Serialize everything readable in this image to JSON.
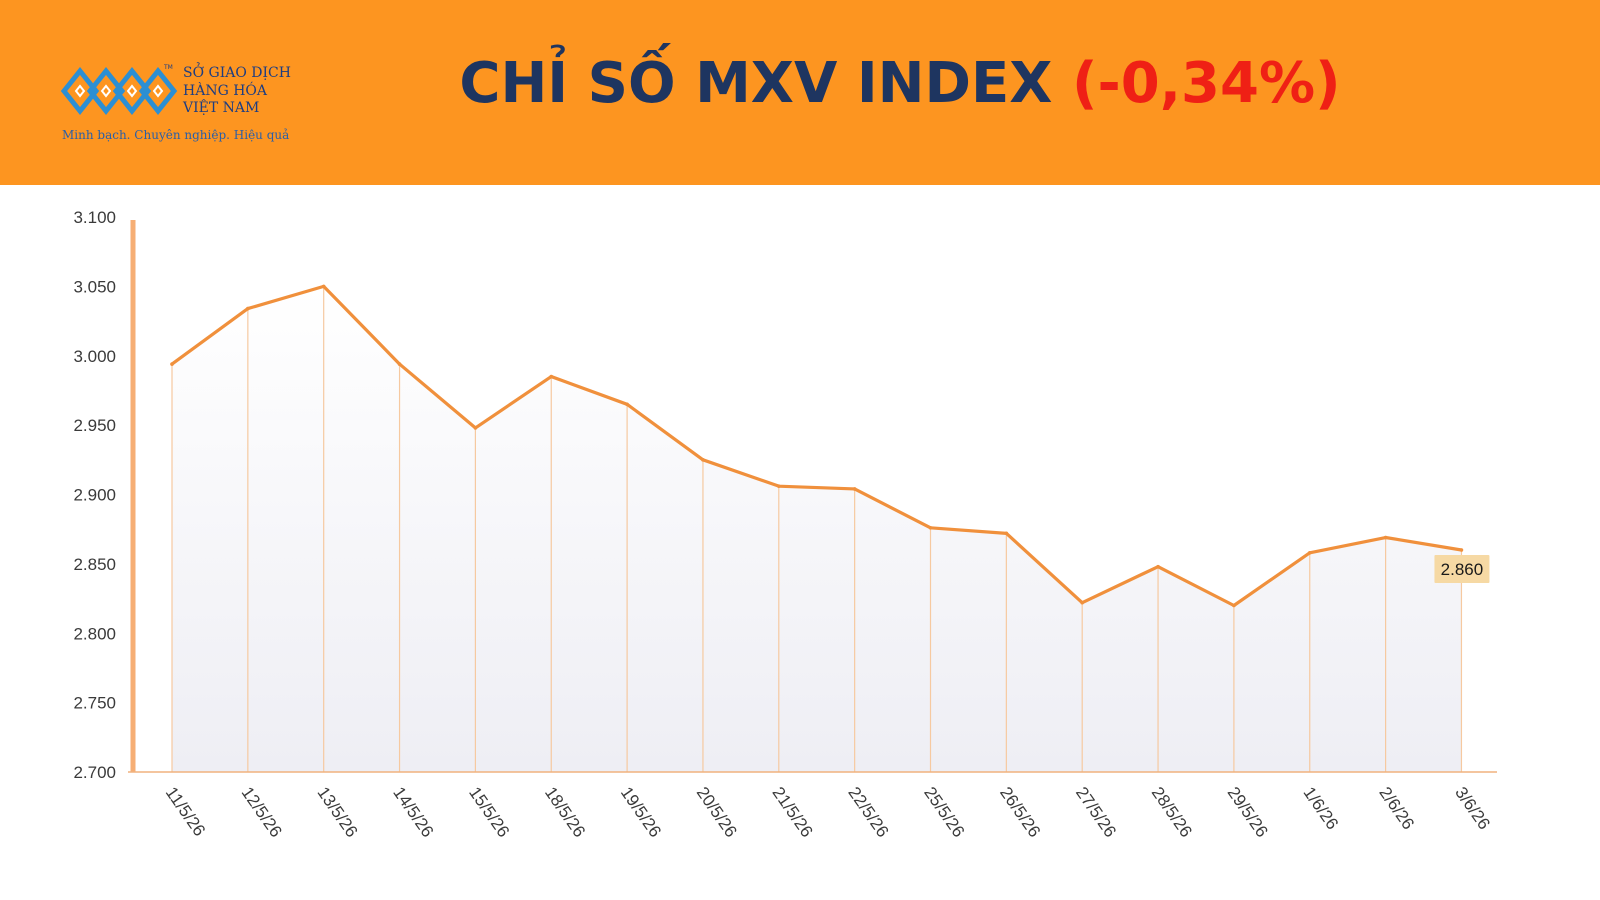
{
  "header": {
    "logo": {
      "name_lines": [
        "SỞ GIAO DỊCH",
        "HÀNG HÓA",
        "VIỆT NAM"
      ],
      "trademark": "TM",
      "tagline": "Minh bạch. Chuyên nghiệp. Hiệu quả"
    },
    "title": "CHỈ SỐ MXV INDEX",
    "title_change": "(-0,34%)"
  },
  "colors": {
    "header_bg": "#fd9520",
    "title": "#1e3560",
    "change_negative": "#ef2015",
    "line": "#f0903c",
    "last_label_bg": "#f6d9a4"
  },
  "chart_data": {
    "type": "line",
    "title": "CHỈ SỐ MXV INDEX",
    "categories": [
      "11/5/26",
      "12/5/26",
      "13/5/26",
      "14/5/26",
      "15/5/26",
      "18/5/26",
      "19/5/26",
      "20/5/26",
      "21/5/26",
      "22/5/26",
      "25/5/26",
      "26/5/26",
      "27/5/26",
      "28/5/26",
      "29/5/26",
      "1/6/26",
      "2/6/26",
      "3/6/26"
    ],
    "values": [
      2994,
      3034,
      3050,
      2994,
      2948,
      2985,
      2965,
      2925,
      2906,
      2904,
      2876,
      2872,
      2822,
      2848,
      2820,
      2858,
      2869,
      2860
    ],
    "ylim": [
      2700,
      3100
    ],
    "yticks": [
      2700,
      2750,
      2800,
      2850,
      2900,
      2950,
      3000,
      3050,
      3100
    ],
    "ytick_labels": [
      "2.700",
      "2.750",
      "2.800",
      "2.850",
      "2.900",
      "2.950",
      "3.000",
      "3.050",
      "3.100"
    ],
    "last_value_label": "2.860",
    "xlabel": "",
    "ylabel": "",
    "grid": false,
    "drop_lines": true,
    "area_fill": "gradient"
  }
}
